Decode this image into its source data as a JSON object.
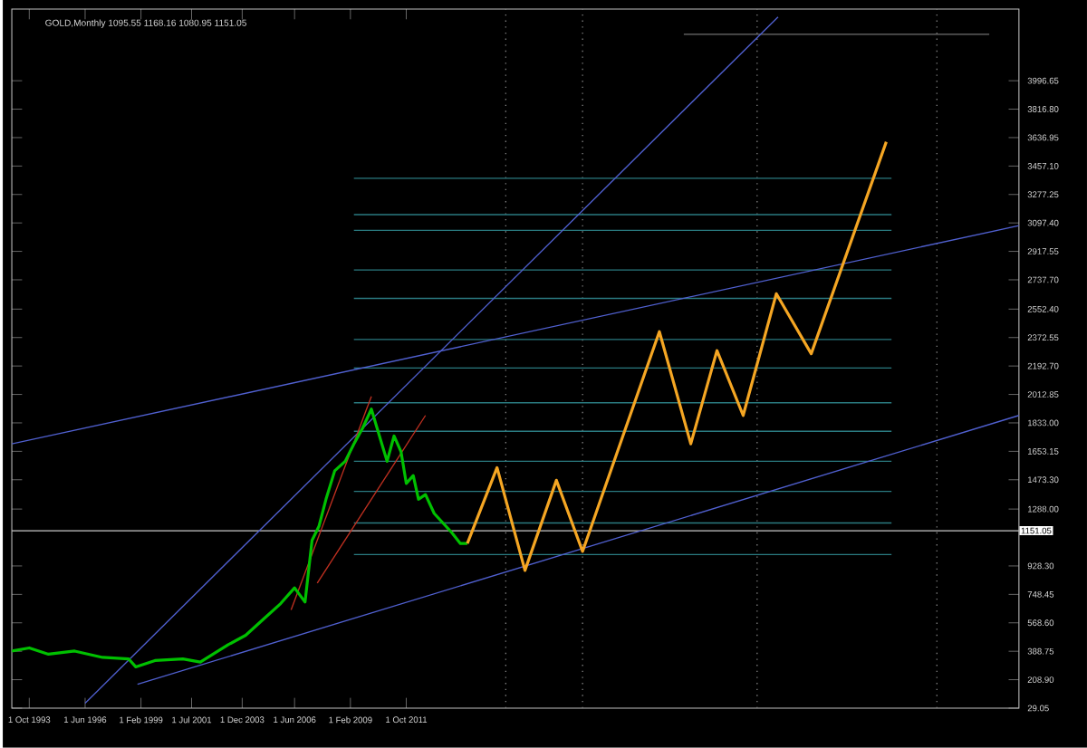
{
  "chart_data": {
    "type": "line",
    "title": "GOLD,Monthly  1095.55 1168.16 1080.95 1151.05",
    "grid": false,
    "marker": "none",
    "line_style": "solid",
    "xlim": [
      "1992-12",
      "2041-01"
    ],
    "ylim": [
      29.05,
      4450
    ],
    "xticks": [
      {
        "value": "1993-10-01",
        "label": "1 Oct 1993"
      },
      {
        "value": "1996-06-01",
        "label": "1 Jun 1996"
      },
      {
        "value": "1999-02-01",
        "label": "1 Feb 1999"
      },
      {
        "value": "2001-07-01",
        "label": "1 Jul 2001"
      },
      {
        "value": "2003-12-01",
        "label": "1 Dec 2003"
      },
      {
        "value": "2006-06-01",
        "label": "1 Jun 2006"
      },
      {
        "value": "2009-02-01",
        "label": "1 Feb 2009"
      },
      {
        "value": "2011-10-01",
        "label": "1 Oct 2011"
      }
    ],
    "yticks": [
      {
        "value": 29.05,
        "label": "29.05"
      },
      {
        "value": 208.9,
        "label": "208.90"
      },
      {
        "value": 388.75,
        "label": "388.75"
      },
      {
        "value": 568.6,
        "label": "568.60"
      },
      {
        "value": 748.45,
        "label": "748.45"
      },
      {
        "value": 928.3,
        "label": "928.30"
      },
      {
        "value": 1288.0,
        "label": "1288.00"
      },
      {
        "value": 1473.3,
        "label": "1473.30"
      },
      {
        "value": 1653.15,
        "label": "1653.15"
      },
      {
        "value": 1833.0,
        "label": "1833.00"
      },
      {
        "value": 2012.85,
        "label": "2012.85"
      },
      {
        "value": 2192.7,
        "label": "2192.70"
      },
      {
        "value": 2372.55,
        "label": "2372.55"
      },
      {
        "value": 2552.4,
        "label": "2552.40"
      },
      {
        "value": 2737.7,
        "label": "2737.70"
      },
      {
        "value": 2917.55,
        "label": "2917.55"
      },
      {
        "value": 3097.4,
        "label": "3097.40"
      },
      {
        "value": 3277.25,
        "label": "3277.25"
      },
      {
        "value": 3457.1,
        "label": "3457.10"
      },
      {
        "value": 3636.95,
        "label": "3636.95"
      },
      {
        "value": 3816.8,
        "label": "3816.80"
      },
      {
        "value": 3996.65,
        "label": "3996.65"
      }
    ],
    "ref_lines": [
      {
        "axis": "y",
        "value": 1151.05,
        "label": "1151.05",
        "color": "#c8c8c8",
        "line_style": "solid"
      },
      {
        "axis": "x",
        "value": "2016-07",
        "color": "#808080",
        "line_style": "dotted"
      },
      {
        "axis": "x",
        "value": "2020-03",
        "color": "#808080",
        "line_style": "dotted"
      },
      {
        "axis": "x",
        "value": "2028-07",
        "color": "#808080",
        "line_style": "dotted"
      },
      {
        "axis": "x",
        "value": "2037-02",
        "color": "#808080",
        "line_style": "dotted"
      }
    ],
    "series": [
      {
        "color": "#2a7a80",
        "x": [
          "2009-04",
          "2034-12"
        ],
        "values": [
          3380,
          3380
        ]
      },
      {
        "color": "#2a7a80",
        "x": [
          "2009-04",
          "2034-12"
        ],
        "values": [
          3150,
          3150
        ]
      },
      {
        "color": "#2a7a80",
        "x": [
          "2009-04",
          "2034-12"
        ],
        "values": [
          3050,
          3050
        ]
      },
      {
        "color": "#2a7a80",
        "x": [
          "2009-04",
          "2034-12"
        ],
        "values": [
          2800,
          2800
        ]
      },
      {
        "color": "#2a7a80",
        "x": [
          "2009-04",
          "2034-12"
        ],
        "values": [
          2620,
          2620
        ]
      },
      {
        "color": "#2a7a80",
        "x": [
          "2009-04",
          "2034-12"
        ],
        "values": [
          2360,
          2360
        ]
      },
      {
        "color": "#2a7a80",
        "x": [
          "2009-04",
          "2034-12"
        ],
        "values": [
          2180,
          2180
        ]
      },
      {
        "color": "#2a7a80",
        "x": [
          "2009-04",
          "2034-12"
        ],
        "values": [
          1960,
          1960
        ]
      },
      {
        "color": "#2a7a80",
        "x": [
          "2009-04",
          "2034-12"
        ],
        "values": [
          1780,
          1780
        ]
      },
      {
        "color": "#2a7a80",
        "x": [
          "2009-04",
          "2034-12"
        ],
        "values": [
          1590,
          1590
        ]
      },
      {
        "color": "#2a7a80",
        "x": [
          "2009-04",
          "2034-12"
        ],
        "values": [
          1400,
          1400
        ]
      },
      {
        "color": "#2a7a80",
        "x": [
          "2009-04",
          "2034-12"
        ],
        "values": [
          1200,
          1200
        ]
      },
      {
        "color": "#2a7a80",
        "x": [
          "2009-04",
          "2034-12"
        ],
        "values": [
          1000,
          1000
        ]
      },
      {
        "color": "#707070",
        "x": [
          "2025-01",
          "2039-08"
        ],
        "values": [
          4290,
          4290
        ]
      },
      {
        "color": "#5060d0",
        "x": [
          "1996-06",
          "2029-07"
        ],
        "values": [
          60,
          4400
        ]
      },
      {
        "color": "#5060d0",
        "x": [
          "1992-12",
          "2041-01"
        ],
        "values": [
          1700,
          3080
        ]
      },
      {
        "color": "#5060d0",
        "x": [
          "1998-12",
          "2041-01"
        ],
        "values": [
          180,
          1880
        ]
      },
      {
        "color": "#c03020",
        "x": [
          "2006-04",
          "2010-02"
        ],
        "values": [
          650,
          2000
        ]
      },
      {
        "color": "#c03020",
        "x": [
          "2007-07",
          "2012-09"
        ],
        "values": [
          820,
          1880
        ]
      },
      {
        "color": "#00c000",
        "x": [
          "1992-12",
          "1993-10",
          "1994-09",
          "1995-12",
          "1997-04",
          "1998-07",
          "1998-11",
          "1999-10",
          "2001-02",
          "2001-12",
          "2003-04",
          "2004-02",
          "2004-12",
          "2005-10",
          "2006-06",
          "2006-12",
          "2007-04",
          "2007-08",
          "2007-12",
          "2008-05",
          "2008-11",
          "2009-04",
          "2009-09",
          "2010-02",
          "2010-08",
          "2010-11",
          "2011-03",
          "2011-07",
          "2011-10",
          "2012-02",
          "2012-05",
          "2012-09",
          "2013-02",
          "2013-07",
          "2013-12",
          "2014-05",
          "2014-09"
        ],
        "values": [
          390,
          410,
          370,
          390,
          350,
          340,
          290,
          330,
          340,
          320,
          430,
          490,
          590,
          690,
          790,
          700,
          1090,
          1180,
          1350,
          1530,
          1590,
          1700,
          1800,
          1920,
          1700,
          1590,
          1750,
          1650,
          1450,
          1500,
          1350,
          1380,
          1260,
          1200,
          1140,
          1070,
          1070
        ]
      },
      {
        "color": "#f5a623",
        "x": [
          "2014-09",
          "2016-02",
          "2017-06",
          "2018-12",
          "2020-03",
          "2023-11",
          "2025-05",
          "2026-08",
          "2027-11",
          "2029-06",
          "2031-02",
          "2034-09"
        ],
        "values": [
          1070,
          1550,
          900,
          1470,
          1020,
          2410,
          1700,
          2290,
          1880,
          2650,
          2270,
          3610
        ]
      }
    ]
  }
}
